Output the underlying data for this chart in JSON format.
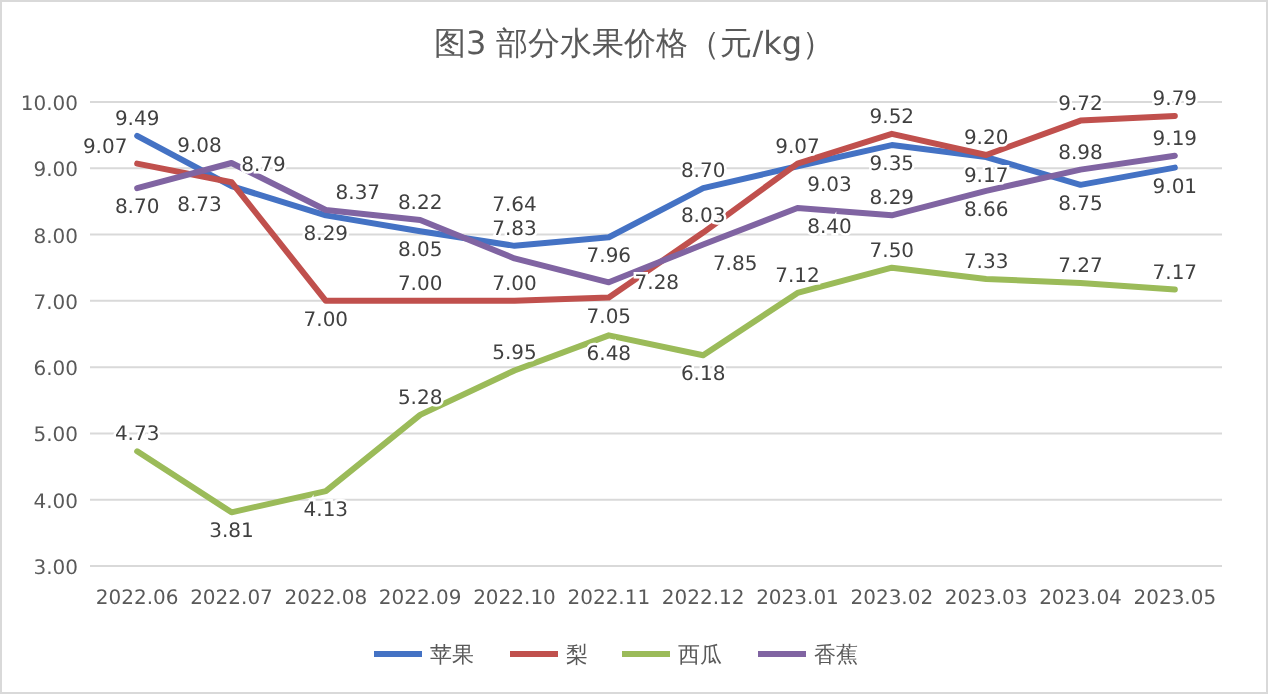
{
  "chart_data": {
    "type": "line",
    "title": "图3  部分水果价格（元/kg）",
    "categories": [
      "2022.06",
      "2022.07",
      "2022.08",
      "2022.09",
      "2022.10",
      "2022.11",
      "2022.12",
      "2023.01",
      "2023.02",
      "2023.03",
      "2023.04",
      "2023.05"
    ],
    "series": [
      {
        "name": "苹果",
        "color": "#4472c4",
        "values": [
          9.49,
          8.73,
          8.29,
          8.05,
          7.83,
          7.96,
          8.7,
          9.03,
          9.35,
          9.17,
          8.75,
          9.01
        ],
        "value_labels": [
          "9.49",
          "8.73",
          "8.29",
          "8.05",
          "7.83",
          "7.96",
          "8.70",
          "9.03",
          "9.35",
          "9.17",
          "8.75",
          "9.01"
        ]
      },
      {
        "name": "梨",
        "color": "#c0504d",
        "values": [
          9.07,
          8.79,
          7.0,
          7.0,
          7.0,
          7.05,
          8.03,
          9.07,
          9.52,
          9.2,
          9.72,
          9.79
        ],
        "value_labels": [
          "9.07",
          "8.79",
          "7.00",
          "7.00",
          "7.00",
          "7.05",
          "8.03",
          "9.07",
          "9.52",
          "9.20",
          "9.72",
          "9.79"
        ]
      },
      {
        "name": "西瓜",
        "color": "#9bbb59",
        "values": [
          4.73,
          3.81,
          4.13,
          5.28,
          5.95,
          6.48,
          6.18,
          7.12,
          7.5,
          7.33,
          7.27,
          7.17
        ],
        "value_labels": [
          "4.73",
          "3.81",
          "4.13",
          "5.28",
          "5.95",
          "6.48",
          "6.18",
          "7.12",
          "7.50",
          "7.33",
          "7.27",
          "7.17"
        ]
      },
      {
        "name": "香蕉",
        "color": "#8064a2",
        "values": [
          8.7,
          9.08,
          8.37,
          8.22,
          7.64,
          7.28,
          7.85,
          8.4,
          8.29,
          8.66,
          8.98,
          9.19
        ],
        "value_labels": [
          "8.70",
          "9.08",
          "8.37",
          "8.22",
          "7.64",
          "7.28",
          "7.85",
          "8.40",
          "8.29",
          "8.66",
          "8.98",
          "9.19"
        ]
      }
    ],
    "ylim": [
      3,
      10
    ],
    "yticks": [
      {
        "value": 3,
        "label": "3.00"
      },
      {
        "value": 4,
        "label": "4.00"
      },
      {
        "value": 5,
        "label": "5.00"
      },
      {
        "value": 6,
        "label": "6.00"
      },
      {
        "value": 7,
        "label": "7.00"
      },
      {
        "value": 8,
        "label": "8.00"
      },
      {
        "value": 9,
        "label": "9.00"
      },
      {
        "value": 10,
        "label": "10.00"
      }
    ],
    "grid": "y",
    "legend": "bottom",
    "marker": "none",
    "line_style": "solid"
  }
}
